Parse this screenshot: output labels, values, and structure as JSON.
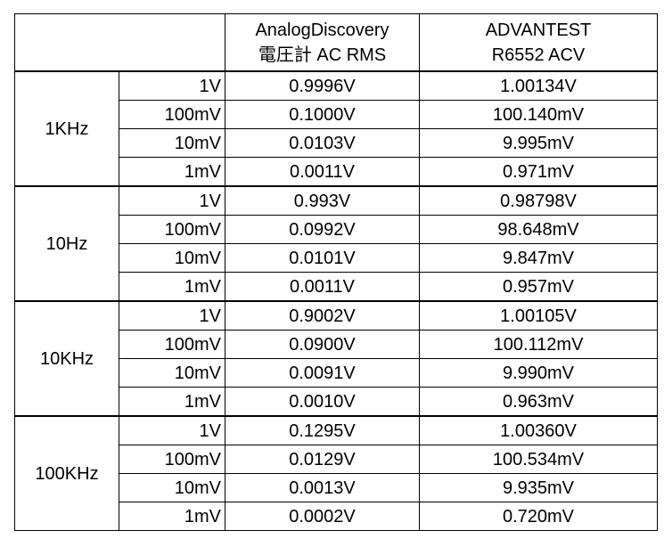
{
  "header": {
    "columns": [
      [
        "AnalogDiscovery",
        "電圧計  AC RMS"
      ],
      [
        "ADVANTEST",
        "R6552 ACV"
      ]
    ]
  },
  "groups": [
    {
      "frequency": "1KHz",
      "rows": [
        [
          "1V",
          "0.9996V",
          "1.00134V"
        ],
        [
          "100mV",
          "0.1000V",
          "100.140mV"
        ],
        [
          "10mV",
          "0.0103V",
          "9.995mV"
        ],
        [
          "1mV",
          "0.0011V",
          "0.971mV"
        ]
      ]
    },
    {
      "frequency": "10Hz",
      "rows": [
        [
          "1V",
          "0.993V",
          "0.98798V"
        ],
        [
          "100mV",
          "0.0992V",
          "98.648mV"
        ],
        [
          "10mV",
          "0.0101V",
          "9.847mV"
        ],
        [
          "1mV",
          "0.0011V",
          "0.957mV"
        ]
      ]
    },
    {
      "frequency": "10KHz",
      "rows": [
        [
          "1V",
          "0.9002V",
          "1.00105V"
        ],
        [
          "100mV",
          "0.0900V",
          "100.112mV"
        ],
        [
          "10mV",
          "0.0091V",
          "9.990mV"
        ],
        [
          "1mV",
          "0.0010V",
          "0.963mV"
        ]
      ]
    },
    {
      "frequency": "100KHz",
      "rows": [
        [
          "1V",
          "0.1295V",
          "1.00360V"
        ],
        [
          "100mV",
          "0.0129V",
          "100.534mV"
        ],
        [
          "10mV",
          "0.0013V",
          "9.935mV"
        ],
        [
          "1mV",
          "0.0002V",
          "0.720mV"
        ]
      ]
    }
  ]
}
